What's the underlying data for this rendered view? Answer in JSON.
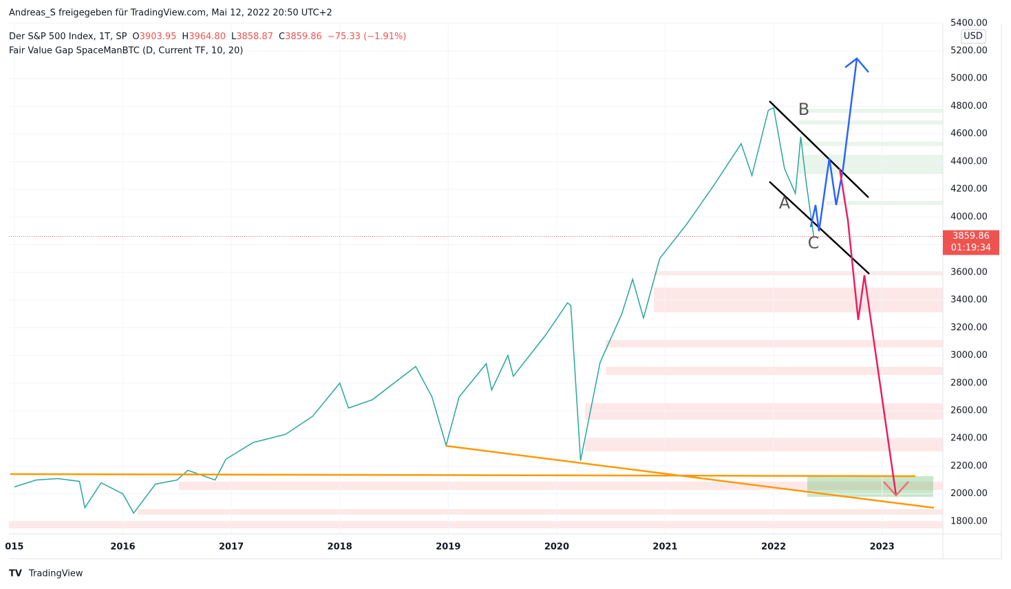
{
  "author_line": "Andreas_S freigegeben für TradingView.com, Mai 12, 2022 20:50 UTC+2",
  "footer": "TradingView",
  "chart_data": {
    "type": "line",
    "title": "Der S&P 500 Index, 1T, SP",
    "ohlc": [
      {
        "label": "O",
        "value": "3903.95"
      },
      {
        "label": "H",
        "value": "3964.80"
      },
      {
        "label": "L",
        "value": "3858.87"
      },
      {
        "label": "C",
        "value": "3859.86"
      }
    ],
    "change": "−75.33 (−1.91%)",
    "indicator": "Fair Value Gap SpaceManBTC (D, Current TF, 10, 20)",
    "currency": "USD",
    "color": "#26a69a",
    "x": [
      2015.0,
      2015.2,
      2015.4,
      2015.6,
      2015.65,
      2015.8,
      2016.0,
      2016.1,
      2016.3,
      2016.5,
      2016.6,
      2016.85,
      2016.95,
      2017.2,
      2017.5,
      2017.75,
      2018.0,
      2018.08,
      2018.3,
      2018.7,
      2018.85,
      2018.98,
      2019.1,
      2019.35,
      2019.4,
      2019.55,
      2019.6,
      2019.9,
      2020.1,
      2020.13,
      2020.22,
      2020.4,
      2020.6,
      2020.7,
      2020.8,
      2020.95,
      2021.2,
      2021.45,
      2021.7,
      2021.8,
      2021.95,
      2022.0,
      2022.1,
      2022.2,
      2022.25,
      2022.3,
      2022.37
    ],
    "values": [
      2050,
      2100,
      2110,
      2090,
      1900,
      2080,
      2000,
      1860,
      2070,
      2100,
      2170,
      2100,
      2250,
      2370,
      2430,
      2560,
      2800,
      2620,
      2680,
      2920,
      2700,
      2350,
      2700,
      2940,
      2750,
      3000,
      2850,
      3150,
      3380,
      3360,
      2240,
      2950,
      3300,
      3550,
      3270,
      3700,
      3950,
      4230,
      4530,
      4300,
      4770,
      4790,
      4350,
      4170,
      4580,
      4250,
      3860
    ],
    "xlim": [
      2014.95,
      2023.56
    ],
    "ylim": [
      1710,
      5394
    ],
    "xticks": [
      {
        "value": 2015,
        "label": "015"
      },
      2016,
      2017,
      2018,
      2019,
      2020,
      2021,
      2022,
      2023
    ],
    "yticks": [
      {
        "value": 1800,
        "label": "1800.00"
      },
      {
        "value": 2000,
        "label": "2000.00"
      },
      {
        "value": 2200,
        "label": "2200.00"
      },
      {
        "value": 2400,
        "label": "2400.00"
      },
      {
        "value": 2600,
        "label": "2600.00"
      },
      {
        "value": 2800,
        "label": "2800.00"
      },
      {
        "value": 3000,
        "label": "3000.00"
      },
      {
        "value": 3200,
        "label": "3200.00"
      },
      {
        "value": 3400,
        "label": "3400.00"
      },
      {
        "value": 3600,
        "label": "3600.00"
      },
      {
        "value": 3800,
        "label": "3800.00"
      },
      {
        "value": 4000,
        "label": "4000.00"
      },
      {
        "value": 4200,
        "label": "4200.00"
      },
      {
        "value": 4400,
        "label": "4400.00"
      },
      {
        "value": 4600,
        "label": "4600.00"
      },
      {
        "value": 4800,
        "label": "4800.00"
      },
      {
        "value": 5000,
        "label": "5000.00"
      },
      {
        "value": 5200,
        "label": "5200.00"
      },
      {
        "value": 5400,
        "label": "5400.00"
      }
    ],
    "grid": true,
    "last_price": 3859.86,
    "countdown": "01:19:34",
    "annotations": [
      "A",
      "B",
      "C"
    ]
  }
}
